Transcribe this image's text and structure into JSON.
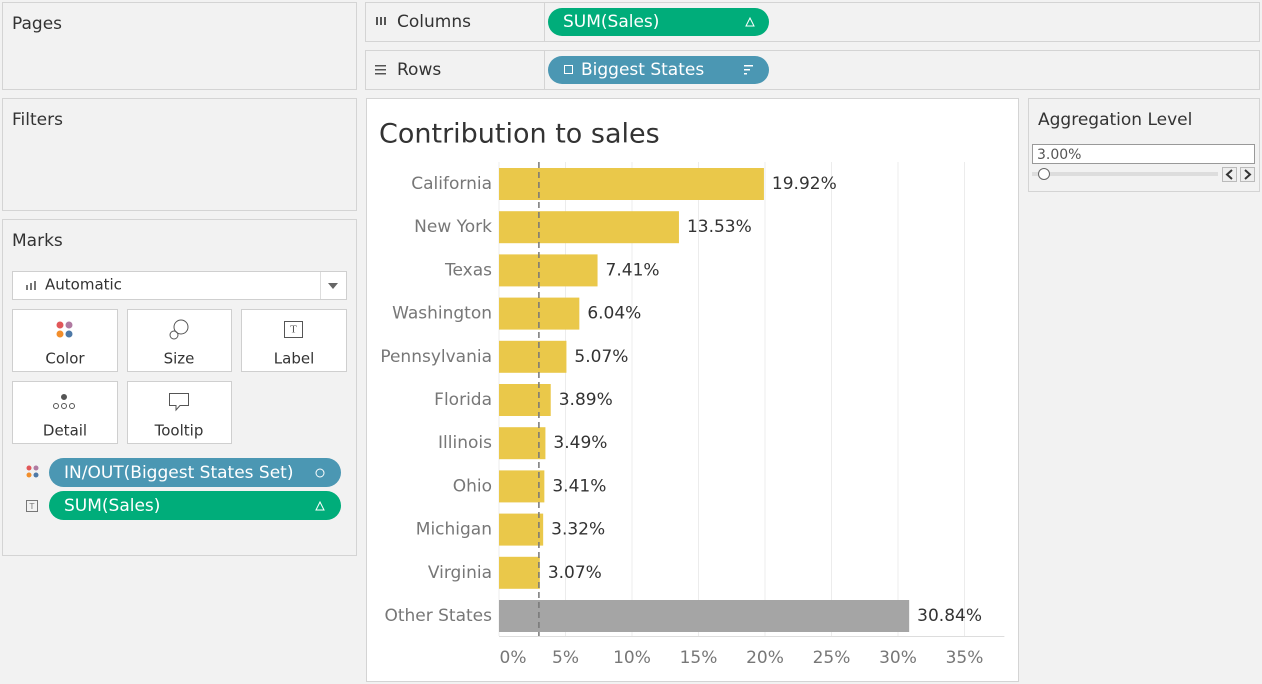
{
  "ui": {
    "pages": {
      "title": "Pages"
    },
    "filters": {
      "title": "Filters"
    },
    "marks": {
      "title": "Marks",
      "mark_type": "Automatic",
      "buttons": [
        "Color",
        "Size",
        "Label",
        "Detail",
        "Tooltip"
      ],
      "pills": [
        "IN/OUT(Biggest States Set)",
        "SUM(Sales)"
      ]
    },
    "columns": {
      "label": "Columns",
      "pill": "SUM(Sales)"
    },
    "rows": {
      "label": "Rows",
      "pill": "Biggest States"
    },
    "parameter": {
      "title": "Aggregation Level",
      "value": "3.00%"
    }
  },
  "chart_data": {
    "type": "bar",
    "orientation": "horizontal",
    "title": "Contribution to sales",
    "categories": [
      "California",
      "New York",
      "Texas",
      "Washington",
      "Pennsylvania",
      "Florida",
      "Illinois",
      "Ohio",
      "Michigan",
      "Virginia",
      "Other States"
    ],
    "values": [
      19.92,
      13.53,
      7.41,
      6.04,
      5.07,
      3.89,
      3.49,
      3.41,
      3.32,
      3.07,
      30.84
    ],
    "value_labels": [
      "19.92%",
      "13.53%",
      "7.41%",
      "6.04%",
      "5.07%",
      "3.89%",
      "3.49%",
      "3.41%",
      "3.32%",
      "3.07%",
      "30.84%"
    ],
    "colors": [
      "#eac84a",
      "#eac84a",
      "#eac84a",
      "#eac84a",
      "#eac84a",
      "#eac84a",
      "#eac84a",
      "#eac84a",
      "#eac84a",
      "#eac84a",
      "#a5a5a5"
    ],
    "reference_line": 3,
    "xlim": [
      0,
      38
    ],
    "xticks": [
      {
        "value": 0,
        "label": "0%"
      },
      {
        "value": 5,
        "label": "5%"
      },
      {
        "value": 10,
        "label": "10%"
      },
      {
        "value": 15,
        "label": "15%"
      },
      {
        "value": 20,
        "label": "20%"
      },
      {
        "value": 25,
        "label": "25%"
      },
      {
        "value": 30,
        "label": "30%"
      },
      {
        "value": 35,
        "label": "35%"
      }
    ],
    "grid": true
  }
}
